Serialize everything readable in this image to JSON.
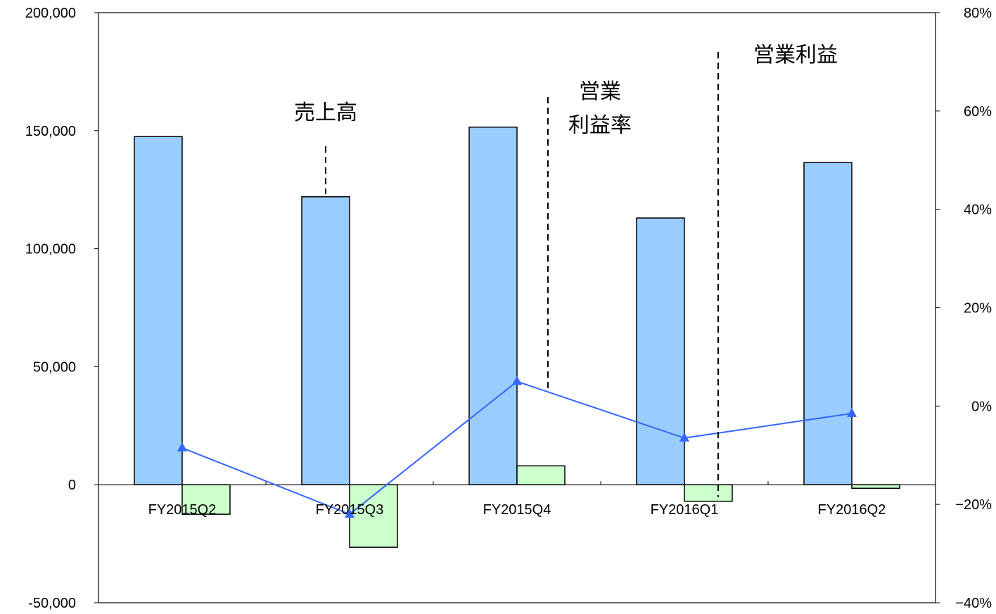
{
  "chart_data": {
    "type": "bar",
    "categories": [
      "FY2015Q2",
      "FY2015Q3",
      "FY2015Q4",
      "FY2016Q1",
      "FY2016Q2"
    ],
    "series": [
      {
        "name": "売上高",
        "kind": "bar",
        "axis": "left",
        "color": "#99ccff",
        "values": [
          147500,
          122000,
          151500,
          113000,
          136500
        ]
      },
      {
        "name": "営業利益",
        "kind": "bar",
        "axis": "left",
        "color": "#ccffcc",
        "values": [
          -12500,
          -26500,
          8000,
          -7000,
          -1500
        ]
      },
      {
        "name": "営業利益率",
        "kind": "line",
        "axis": "right",
        "color": "#3366ff",
        "marker": "triangle",
        "values": [
          -8.5,
          -22,
          5,
          -6.5,
          -1.5
        ]
      }
    ],
    "y_left": {
      "min": -50000,
      "max": 200000,
      "ticks": [
        "-50,000",
        "0",
        "50,000",
        "100,000",
        "150,000",
        "200,000"
      ],
      "tick_values": [
        -50000,
        0,
        50000,
        100000,
        150000,
        200000
      ],
      "negative_color": "#ff0000"
    },
    "y_right": {
      "min": -40,
      "max": 80,
      "ticks": [
        "−40%",
        "−20%",
        "0%",
        "20%",
        "40%",
        "60%",
        "80%"
      ],
      "tick_values": [
        -40,
        -20,
        0,
        20,
        40,
        60,
        80
      ]
    },
    "annotations": [
      {
        "lines": [
          "売上高"
        ],
        "series": "売上高",
        "category_index": 1
      },
      {
        "lines": [
          "営業",
          "利益率"
        ],
        "series": "営業利益率",
        "category_index": 2
      },
      {
        "lines": [
          "営業利益"
        ],
        "series": "営業利益",
        "category_index": 3
      }
    ],
    "grid": false,
    "legend": "none"
  }
}
